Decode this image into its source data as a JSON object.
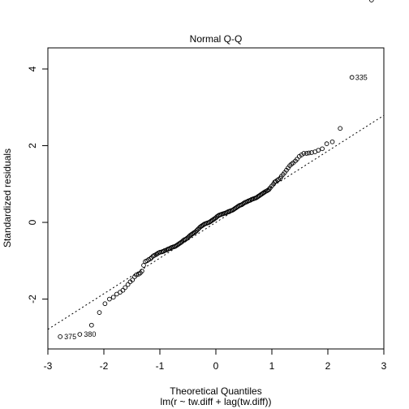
{
  "chart_data": {
    "type": "scatter",
    "title": "Normal Q-Q",
    "xlabel": "Theoretical Quantiles",
    "xlabel_sub": "lm(r ~ tw.diff + lag(tw.diff))",
    "ylabel": "Standardized residuals",
    "xlim": [
      -3,
      3
    ],
    "ylim": [
      -3.3,
      4.55
    ],
    "x_ticks": [
      -3,
      -2,
      -1,
      0,
      1,
      2,
      3
    ],
    "x_tick_labels": [
      "-3",
      "-2",
      "-1",
      "0",
      "1",
      "2",
      "3"
    ],
    "y_ticks": [
      -2,
      0,
      2,
      4
    ],
    "y_tick_labels": [
      "-2",
      "0",
      "2",
      "4"
    ],
    "reference_line": {
      "intercept": 0.0,
      "slope": 0.93,
      "style": "dotted"
    },
    "grid": false,
    "series": [
      {
        "points_x": [
          -2.78,
          -2.43,
          -2.22,
          -2.08,
          -1.98,
          -1.9,
          -1.83,
          -1.77,
          -1.71,
          -1.66,
          -1.62,
          -1.57,
          -1.53,
          -1.49,
          -1.45,
          -1.42,
          -1.38,
          -1.35,
          -1.32,
          -1.29,
          -1.26,
          -1.23,
          -1.2,
          -1.17,
          -1.15,
          -1.12,
          -1.1,
          -1.07,
          -1.05,
          -1.03,
          -1.0,
          -0.97,
          -0.95,
          -0.93,
          -0.91,
          -0.88,
          -0.86,
          -0.84,
          -0.82,
          -0.8,
          -0.78,
          -0.76,
          -0.74,
          -0.72,
          -0.7,
          -0.68,
          -0.66,
          -0.64,
          -0.62,
          -0.6,
          -0.58,
          -0.56,
          -0.54,
          -0.52,
          -0.5,
          -0.48,
          -0.46,
          -0.44,
          -0.42,
          -0.4,
          -0.38,
          -0.36,
          -0.34,
          -0.32,
          -0.3,
          -0.28,
          -0.26,
          -0.24,
          -0.22,
          -0.2,
          -0.18,
          -0.16,
          -0.14,
          -0.12,
          -0.1,
          -0.08,
          -0.06,
          -0.04,
          -0.02,
          0.0,
          0.02,
          0.04,
          0.06,
          0.08,
          0.1,
          0.12,
          0.14,
          0.16,
          0.18,
          0.2,
          0.22,
          0.24,
          0.26,
          0.28,
          0.3,
          0.32,
          0.34,
          0.36,
          0.38,
          0.4,
          0.42,
          0.44,
          0.46,
          0.48,
          0.5,
          0.52,
          0.54,
          0.56,
          0.58,
          0.6,
          0.62,
          0.64,
          0.66,
          0.68,
          0.7,
          0.72,
          0.74,
          0.76,
          0.78,
          0.8,
          0.82,
          0.84,
          0.86,
          0.88,
          0.91,
          0.93,
          0.95,
          0.97,
          1.0,
          1.03,
          1.05,
          1.07,
          1.1,
          1.12,
          1.15,
          1.17,
          1.2,
          1.23,
          1.26,
          1.29,
          1.32,
          1.35,
          1.38,
          1.42,
          1.45,
          1.49,
          1.53,
          1.57,
          1.62,
          1.66,
          1.71,
          1.77,
          1.83,
          1.9,
          1.98,
          2.08,
          2.22,
          2.43,
          2.78
        ],
        "points_y": [
          -2.98,
          -2.92,
          -2.68,
          -2.35,
          -2.12,
          -2.0,
          -1.95,
          -1.87,
          -1.82,
          -1.77,
          -1.7,
          -1.62,
          -1.55,
          -1.5,
          -1.42,
          -1.37,
          -1.35,
          -1.32,
          -1.27,
          -1.12,
          -1.02,
          -1.0,
          -0.97,
          -0.95,
          -0.92,
          -0.88,
          -0.86,
          -0.84,
          -0.82,
          -0.8,
          -0.78,
          -0.77,
          -0.76,
          -0.75,
          -0.73,
          -0.72,
          -0.7,
          -0.69,
          -0.68,
          -0.66,
          -0.65,
          -0.64,
          -0.63,
          -0.62,
          -0.6,
          -0.58,
          -0.56,
          -0.54,
          -0.52,
          -0.5,
          -0.47,
          -0.45,
          -0.44,
          -0.42,
          -0.4,
          -0.37,
          -0.34,
          -0.32,
          -0.3,
          -0.28,
          -0.26,
          -0.24,
          -0.21,
          -0.18,
          -0.15,
          -0.12,
          -0.1,
          -0.08,
          -0.06,
          -0.04,
          -0.03,
          -0.02,
          -0.01,
          0.0,
          0.02,
          0.04,
          0.06,
          0.08,
          0.1,
          0.12,
          0.15,
          0.17,
          0.19,
          0.2,
          0.21,
          0.22,
          0.23,
          0.24,
          0.25,
          0.26,
          0.28,
          0.29,
          0.3,
          0.31,
          0.32,
          0.34,
          0.36,
          0.38,
          0.4,
          0.42,
          0.44,
          0.45,
          0.46,
          0.48,
          0.5,
          0.52,
          0.53,
          0.54,
          0.56,
          0.57,
          0.58,
          0.6,
          0.61,
          0.62,
          0.63,
          0.64,
          0.66,
          0.68,
          0.7,
          0.72,
          0.74,
          0.76,
          0.78,
          0.8,
          0.82,
          0.84,
          0.86,
          0.9,
          0.95,
          1.0,
          1.05,
          1.07,
          1.1,
          1.12,
          1.15,
          1.2,
          1.25,
          1.3,
          1.36,
          1.42,
          1.48,
          1.52,
          1.55,
          1.6,
          1.65,
          1.72,
          1.76,
          1.8,
          1.8,
          1.81,
          1.82,
          1.84,
          1.88,
          1.92,
          2.05,
          2.1,
          2.45,
          3.78
        ]
      }
    ],
    "labeled_points": [
      {
        "x": 2.78,
        "y": 3.78,
        "label": "335",
        "side": "left"
      },
      {
        "x": -2.78,
        "y": -2.98,
        "label": "375",
        "side": "right"
      },
      {
        "x": -2.43,
        "y": -2.92,
        "label": "380",
        "side": "right"
      }
    ]
  }
}
